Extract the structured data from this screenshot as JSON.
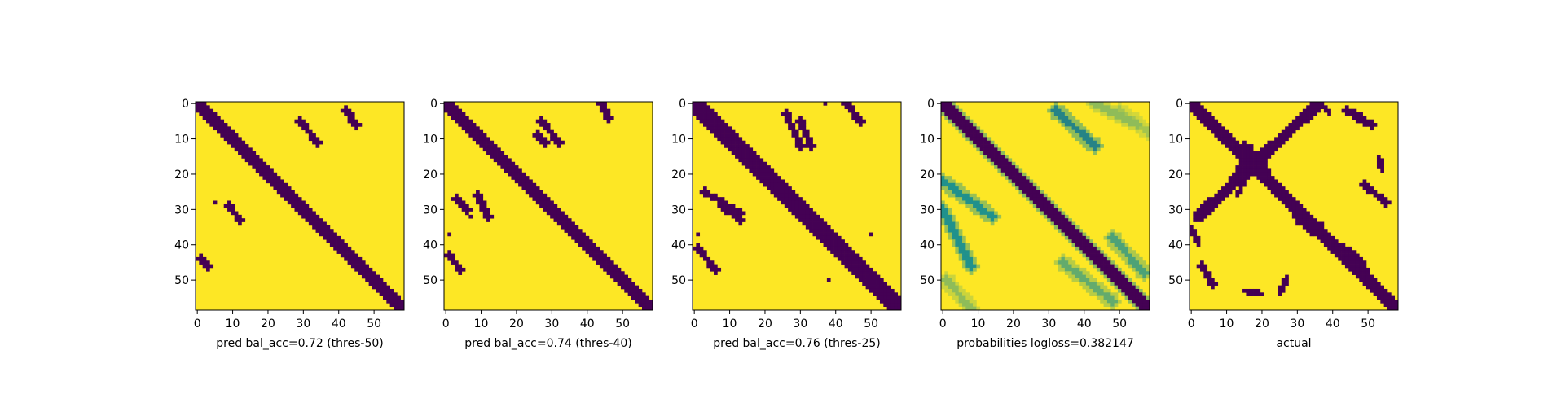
{
  "colors": {
    "low": "#440154",
    "mid": "#21918c",
    "high": "#fde725",
    "axis": "#000000"
  },
  "chart_data": [
    {
      "type": "heatmap",
      "xlabel": "pred bal_acc=0.72 (thres-50)",
      "n": 59,
      "xticks": [
        0,
        10,
        20,
        30,
        40,
        50
      ],
      "yticks": [
        0,
        10,
        20,
        30,
        40,
        50
      ],
      "band_width": 2,
      "segments": [
        {
          "r0": 2,
          "r1": 6,
          "c0": 42,
          "c1": 45,
          "t": 0
        },
        {
          "r0": 5,
          "r1": 11,
          "c0": 29,
          "c1": 34,
          "t": 0
        },
        {
          "r0": 29,
          "r1": 33,
          "c0": 9,
          "c1": 12,
          "t": 0
        },
        {
          "r0": 44,
          "r1": 46,
          "c0": 1,
          "c1": 3,
          "t": 0
        }
      ],
      "dots": [
        {
          "r": 28,
          "c": 5,
          "t": 0
        }
      ]
    },
    {
      "type": "heatmap",
      "xlabel": "pred bal_acc=0.74 (thres-40)",
      "n": 59,
      "xticks": [
        0,
        10,
        20,
        30,
        40,
        50
      ],
      "yticks": [
        0,
        10,
        20,
        30,
        40,
        50
      ],
      "band_width": 2,
      "segments": [
        {
          "r0": 0,
          "r1": 4,
          "c0": 44,
          "c1": 46,
          "t": 0
        },
        {
          "r0": 5,
          "r1": 11,
          "c0": 27,
          "c1": 32,
          "t": 0
        },
        {
          "r0": 9,
          "r1": 11,
          "c0": 26,
          "c1": 28,
          "t": 0
        },
        {
          "r0": 26,
          "r1": 32,
          "c0": 9,
          "c1": 12,
          "t": 0
        },
        {
          "r0": 27,
          "r1": 30,
          "c0": 3,
          "c1": 6,
          "t": 0
        },
        {
          "r0": 43,
          "r1": 47,
          "c0": 1,
          "c1": 4,
          "t": 0
        }
      ],
      "dots": [
        {
          "r": 37,
          "c": 1,
          "t": 0
        },
        {
          "r": 32,
          "c": 7,
          "t": 0
        }
      ]
    },
    {
      "type": "heatmap",
      "xlabel": "pred bal_acc=0.76 (thres-25)",
      "n": 59,
      "xticks": [
        0,
        10,
        20,
        30,
        40,
        50
      ],
      "yticks": [
        0,
        10,
        20,
        30,
        40,
        50
      ],
      "band_width": 3,
      "segments": [
        {
          "r0": 0,
          "r1": 5,
          "c0": 43,
          "c1": 47,
          "t": 0
        },
        {
          "r0": 3,
          "r1": 12,
          "c0": 26,
          "c1": 30,
          "t": 0
        },
        {
          "r0": 5,
          "r1": 12,
          "c0": 30,
          "c1": 33,
          "t": 0
        },
        {
          "r0": 25,
          "r1": 31,
          "c0": 3,
          "c1": 13,
          "t": 0
        },
        {
          "r0": 29,
          "r1": 33,
          "c0": 8,
          "c1": 13,
          "t": 0
        },
        {
          "r0": 41,
          "r1": 47,
          "c0": 1,
          "c1": 6,
          "t": 0
        }
      ],
      "dots": [
        {
          "r": 0,
          "c": 37,
          "t": 0
        },
        {
          "r": 37,
          "c": 1,
          "t": 0
        },
        {
          "r": 37,
          "c": 50,
          "t": 0
        },
        {
          "r": 50,
          "c": 38,
          "t": 0
        }
      ]
    },
    {
      "type": "heatmap",
      "xlabel": "probabilities logloss=0.382147",
      "n": 59,
      "xticks": [
        0,
        10,
        20,
        30,
        40,
        50
      ],
      "yticks": [
        0,
        10,
        20,
        30,
        40,
        50
      ],
      "band_width": 2,
      "band_halo": 3.5,
      "segments": [
        {
          "r0": 2,
          "r1": 12,
          "c0": 32,
          "c1": 43,
          "t": 0.45
        },
        {
          "r0": 0,
          "r1": 6,
          "c0": 43,
          "c1": 55,
          "t": 0.75
        },
        {
          "r0": 22,
          "r1": 32,
          "c0": 0,
          "c1": 14,
          "t": 0.5
        },
        {
          "r0": 30,
          "r1": 46,
          "c0": 0,
          "c1": 8,
          "t": 0.5
        },
        {
          "r0": 38,
          "r1": 48,
          "c0": 48,
          "c1": 57,
          "t": 0.6
        },
        {
          "r0": 45,
          "r1": 56,
          "c0": 34,
          "c1": 48,
          "t": 0.65
        },
        {
          "r0": 50,
          "r1": 58,
          "c0": 1,
          "c1": 8,
          "t": 0.75
        },
        {
          "r0": 2,
          "r1": 8,
          "c0": 50,
          "c1": 58,
          "t": 0.8
        }
      ],
      "dots": []
    },
    {
      "type": "heatmap",
      "xlabel": "actual",
      "n": 59,
      "xticks": [
        0,
        10,
        20,
        30,
        40,
        50
      ],
      "yticks": [
        0,
        10,
        20,
        30,
        40,
        50
      ],
      "band_width": 2,
      "segments": [
        {
          "r0": 0,
          "r1": 32,
          "c0": 36,
          "c1": 2,
          "t": 0,
          "w": 1.6
        },
        {
          "r0": 13,
          "r1": 19,
          "c0": 15,
          "c1": 20,
          "t": 0,
          "w": 2.2
        },
        {
          "r0": 32,
          "r1": 36,
          "c0": 31,
          "c1": 36,
          "t": 0,
          "w": 2.2
        },
        {
          "r0": 42,
          "r1": 47,
          "c0": 43,
          "c1": 48,
          "t": 0,
          "w": 2.2
        },
        {
          "r0": 2,
          "r1": 6,
          "c0": 44,
          "c1": 51,
          "t": 0,
          "w": 1.2
        },
        {
          "r0": 0,
          "r1": 3,
          "c0": 37,
          "c1": 39,
          "t": 0,
          "w": 0.8
        },
        {
          "r0": 15,
          "r1": 19,
          "c0": 53,
          "c1": 54,
          "t": 0,
          "w": 0.8
        },
        {
          "r0": 23,
          "r1": 28,
          "c0": 49,
          "c1": 55,
          "t": 0,
          "w": 1.0
        },
        {
          "r0": 18,
          "r1": 25,
          "c0": 14,
          "c1": 10,
          "t": 0,
          "w": 1.2
        },
        {
          "r0": 35,
          "r1": 40,
          "c0": 0,
          "c1": 2,
          "t": 0,
          "w": 0.8
        },
        {
          "r0": 46,
          "r1": 51,
          "c0": 3,
          "c1": 6,
          "t": 0,
          "w": 1.0
        },
        {
          "r0": 53,
          "r1": 54,
          "c0": 15,
          "c1": 20,
          "t": 0,
          "w": 0.8
        },
        {
          "r0": 49,
          "r1": 54,
          "c0": 27,
          "c1": 25,
          "t": 0,
          "w": 0.8
        },
        {
          "r0": 22,
          "r1": 26,
          "c0": 15,
          "c1": 13,
          "t": 0,
          "w": 0.8
        }
      ],
      "dots": []
    }
  ]
}
